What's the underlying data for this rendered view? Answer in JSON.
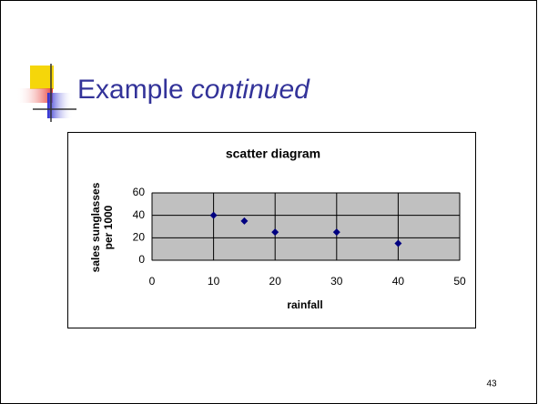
{
  "slide": {
    "title": "Example",
    "title_emphasis": "continued",
    "page_number": "43"
  },
  "chart_data": {
    "type": "scatter",
    "title": "scatter diagram",
    "xlabel": "rainfall",
    "ylabel": [
      "sales sunglasses",
      "per 1000"
    ],
    "x": [
      10,
      15,
      20,
      30,
      40
    ],
    "values": [
      40,
      35,
      25,
      25,
      15
    ],
    "color": "#000080",
    "xlim": [
      0,
      50
    ],
    "xticks": [
      0,
      10,
      20,
      30,
      40,
      50
    ],
    "ylim": [
      0,
      60
    ],
    "yticks": [
      0,
      20,
      40,
      60
    ],
    "grid": true
  }
}
